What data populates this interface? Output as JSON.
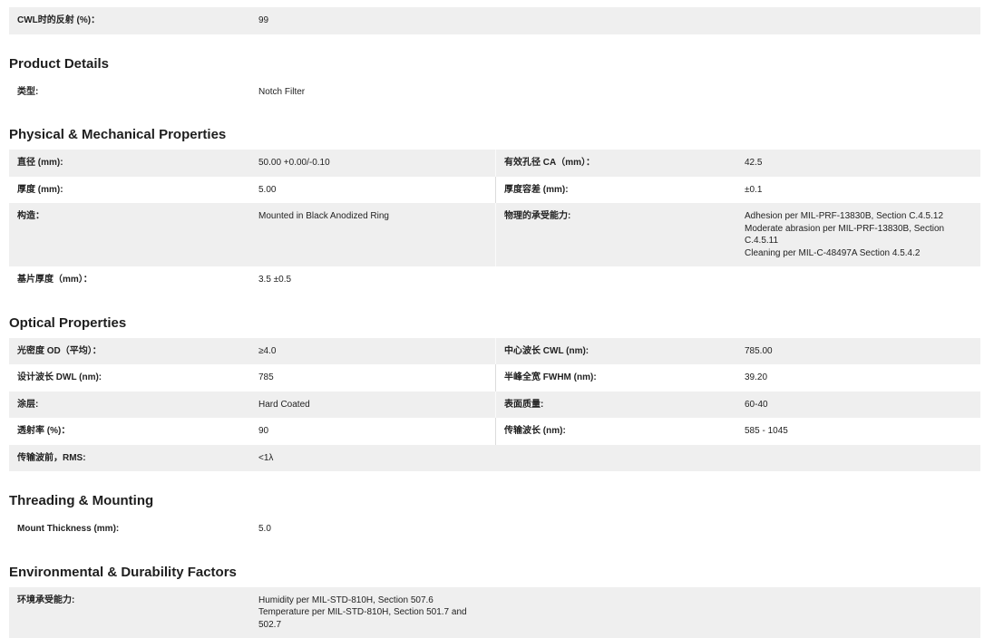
{
  "top_row": {
    "label": "CWL时的反射 (%)：",
    "value": [
      "99"
    ]
  },
  "sections": [
    {
      "title": "Product Details",
      "rows": [
        [
          {
            "label": "类型:",
            "value": [
              "Notch Filter"
            ]
          }
        ]
      ]
    },
    {
      "title": "Physical & Mechanical Properties",
      "rows": [
        [
          {
            "label": "直径 (mm):",
            "value": [
              "50.00 +0.00/-0.10"
            ]
          },
          {
            "label": "有效孔径 CA（mm）：",
            "value": [
              "42.5"
            ]
          }
        ],
        [
          {
            "label": "厚度 (mm):",
            "value": [
              "5.00"
            ]
          },
          {
            "label": "厚度容差 (mm):",
            "value": [
              "±0.1"
            ]
          }
        ],
        [
          {
            "label": "构造：",
            "value": [
              "Mounted in Black Anodized Ring"
            ]
          },
          {
            "label": "物理的承受能力:",
            "value": [
              "Adhesion per MIL-PRF-13830B, Section C.4.5.12",
              "Moderate abrasion per MIL-PRF-13830B, Section",
              "C.4.5.11",
              "Cleaning per MIL-C-48497A Section 4.5.4.2"
            ]
          }
        ],
        [
          {
            "label": "基片厚度（mm）：",
            "value": [
              "3.5 ±0.5"
            ]
          }
        ]
      ]
    },
    {
      "title": "Optical Properties",
      "rows": [
        [
          {
            "label": "光密度 OD（平均）：",
            "value": [
              "≥4.0"
            ]
          },
          {
            "label": "中心波长 CWL (nm):",
            "value": [
              "785.00"
            ]
          }
        ],
        [
          {
            "label": "设计波长 DWL (nm):",
            "value": [
              "785"
            ]
          },
          {
            "label": "半峰全宽 FWHM (nm):",
            "value": [
              "39.20"
            ]
          }
        ],
        [
          {
            "label": "涂层:",
            "value": [
              "Hard Coated"
            ]
          },
          {
            "label": "表面质量:",
            "value": [
              "60-40"
            ]
          }
        ],
        [
          {
            "label": "透射率 (%)：",
            "value": [
              "90"
            ]
          },
          {
            "label": "传输波长 (nm):",
            "value": [
              "585 - 1045"
            ]
          }
        ],
        [
          {
            "label": "传输波前，RMS:",
            "value": [
              "<1λ"
            ]
          }
        ]
      ]
    },
    {
      "title": "Threading & Mounting",
      "rows": [
        [
          {
            "label": "Mount Thickness (mm):",
            "value": [
              "5.0"
            ]
          }
        ]
      ]
    },
    {
      "title": "Environmental & Durability Factors",
      "rows": [
        [
          {
            "label": "环境承受能力:",
            "value": [
              "Humidity per MIL-STD-810H, Section 507.6",
              "Temperature per MIL-STD-810H, Section 501.7 and",
              "502.7"
            ]
          }
        ]
      ]
    }
  ]
}
